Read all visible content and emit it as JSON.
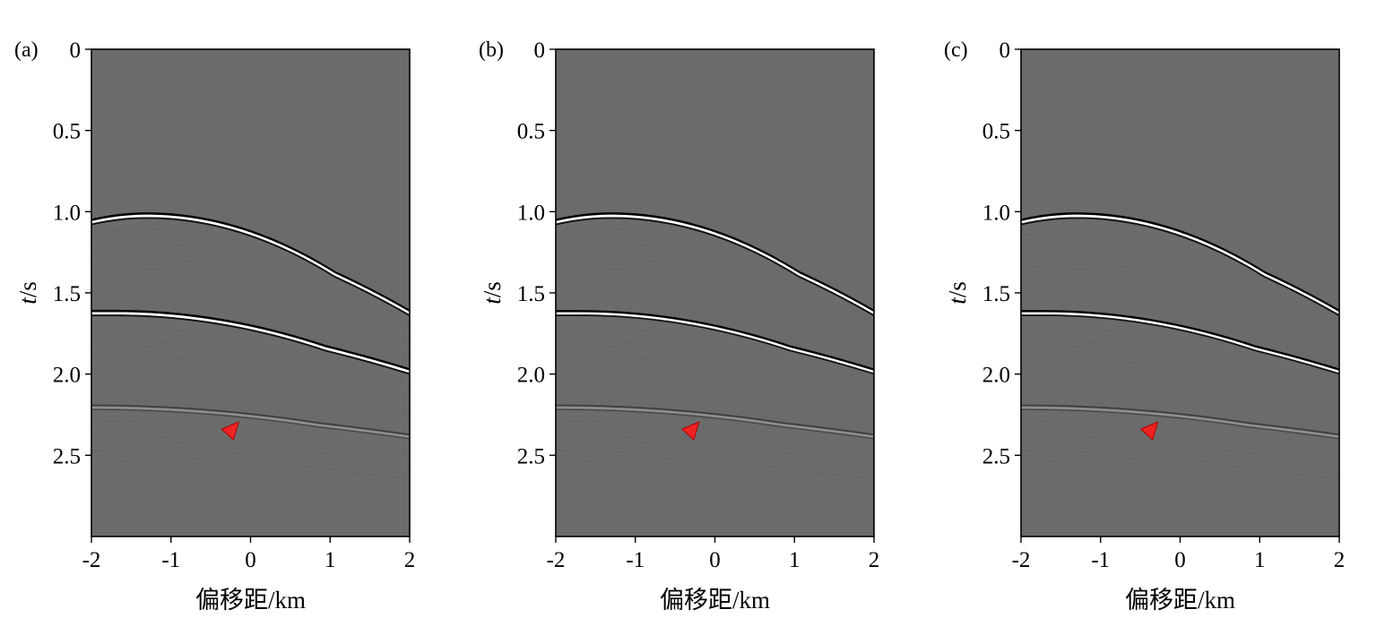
{
  "colors": {
    "background": "#6b6b6b",
    "event_bright": "#ffffff",
    "event_dark": "#000000",
    "marker": "#ee2222"
  },
  "chart_data": [
    {
      "type": "heatmap",
      "panel_label": "(a)",
      "xlabel": "偏移距/km",
      "ylabel_italic": "t",
      "ylabel_unit": "/s",
      "xlim": [
        -2,
        2
      ],
      "ylim": [
        0,
        3.0
      ],
      "y_inverted": true,
      "x_ticks": [
        "-2",
        "-1",
        "0",
        "1",
        "2"
      ],
      "y_ticks": [
        "0",
        "0.5",
        "1.0",
        "1.5",
        "2.0",
        "2.5"
      ],
      "y_tick_values": [
        0,
        0.5,
        1.0,
        1.5,
        2.0,
        2.5
      ],
      "events": [
        {
          "apex_x": -1.3,
          "apex_t": 1.02,
          "t_at_xmin": 1.06,
          "t_at_xmax": 1.62,
          "strength": "strong"
        },
        {
          "apex_x": -1.7,
          "apex_t": 1.62,
          "t_at_xmin": 1.62,
          "t_at_xmax": 1.98,
          "strength": "strong"
        },
        {
          "apex_x": -2.0,
          "apex_t": 2.2,
          "t_at_xmin": 2.2,
          "t_at_xmax": 2.38,
          "strength": "weak"
        }
      ],
      "marker": {
        "x": -0.25,
        "t": 2.35
      }
    },
    {
      "type": "heatmap",
      "panel_label": "(b)",
      "xlabel": "偏移距/km",
      "ylabel_italic": "t",
      "ylabel_unit": "/s",
      "xlim": [
        -2,
        2
      ],
      "ylim": [
        0,
        3.0
      ],
      "y_inverted": true,
      "x_ticks": [
        "-2",
        "-1",
        "0",
        "1",
        "2"
      ],
      "y_ticks": [
        "0",
        "0.5",
        "1.0",
        "1.5",
        "2.0",
        "2.5"
      ],
      "y_tick_values": [
        0,
        0.5,
        1.0,
        1.5,
        2.0,
        2.5
      ],
      "events": [
        {
          "apex_x": -1.3,
          "apex_t": 1.02,
          "t_at_xmin": 1.06,
          "t_at_xmax": 1.62,
          "strength": "strong"
        },
        {
          "apex_x": -1.7,
          "apex_t": 1.62,
          "t_at_xmin": 1.62,
          "t_at_xmax": 1.98,
          "strength": "medium"
        },
        {
          "apex_x": -2.0,
          "apex_t": 2.2,
          "t_at_xmin": 2.2,
          "t_at_xmax": 2.38,
          "strength": "weak"
        }
      ],
      "marker": {
        "x": -0.3,
        "t": 2.35
      }
    },
    {
      "type": "heatmap",
      "panel_label": "(c)",
      "xlabel": "偏移距/km",
      "ylabel_italic": "t",
      "ylabel_unit": "/s",
      "xlim": [
        -2,
        2
      ],
      "ylim": [
        0,
        3.0
      ],
      "y_inverted": true,
      "x_ticks": [
        "-2",
        "-1",
        "0",
        "1",
        "2"
      ],
      "y_ticks": [
        "0",
        "0.5",
        "1.0",
        "1.5",
        "2.0",
        "2.5"
      ],
      "y_tick_values": [
        0,
        0.5,
        1.0,
        1.5,
        2.0,
        2.5
      ],
      "events": [
        {
          "apex_x": -1.3,
          "apex_t": 1.02,
          "t_at_xmin": 1.06,
          "t_at_xmax": 1.62,
          "strength": "strong"
        },
        {
          "apex_x": -1.7,
          "apex_t": 1.62,
          "t_at_xmin": 1.62,
          "t_at_xmax": 1.98,
          "strength": "medium"
        },
        {
          "apex_x": -2.0,
          "apex_t": 2.2,
          "t_at_xmin": 2.2,
          "t_at_xmax": 2.38,
          "strength": "weak"
        }
      ],
      "marker": {
        "x": -0.38,
        "t": 2.35
      }
    }
  ]
}
